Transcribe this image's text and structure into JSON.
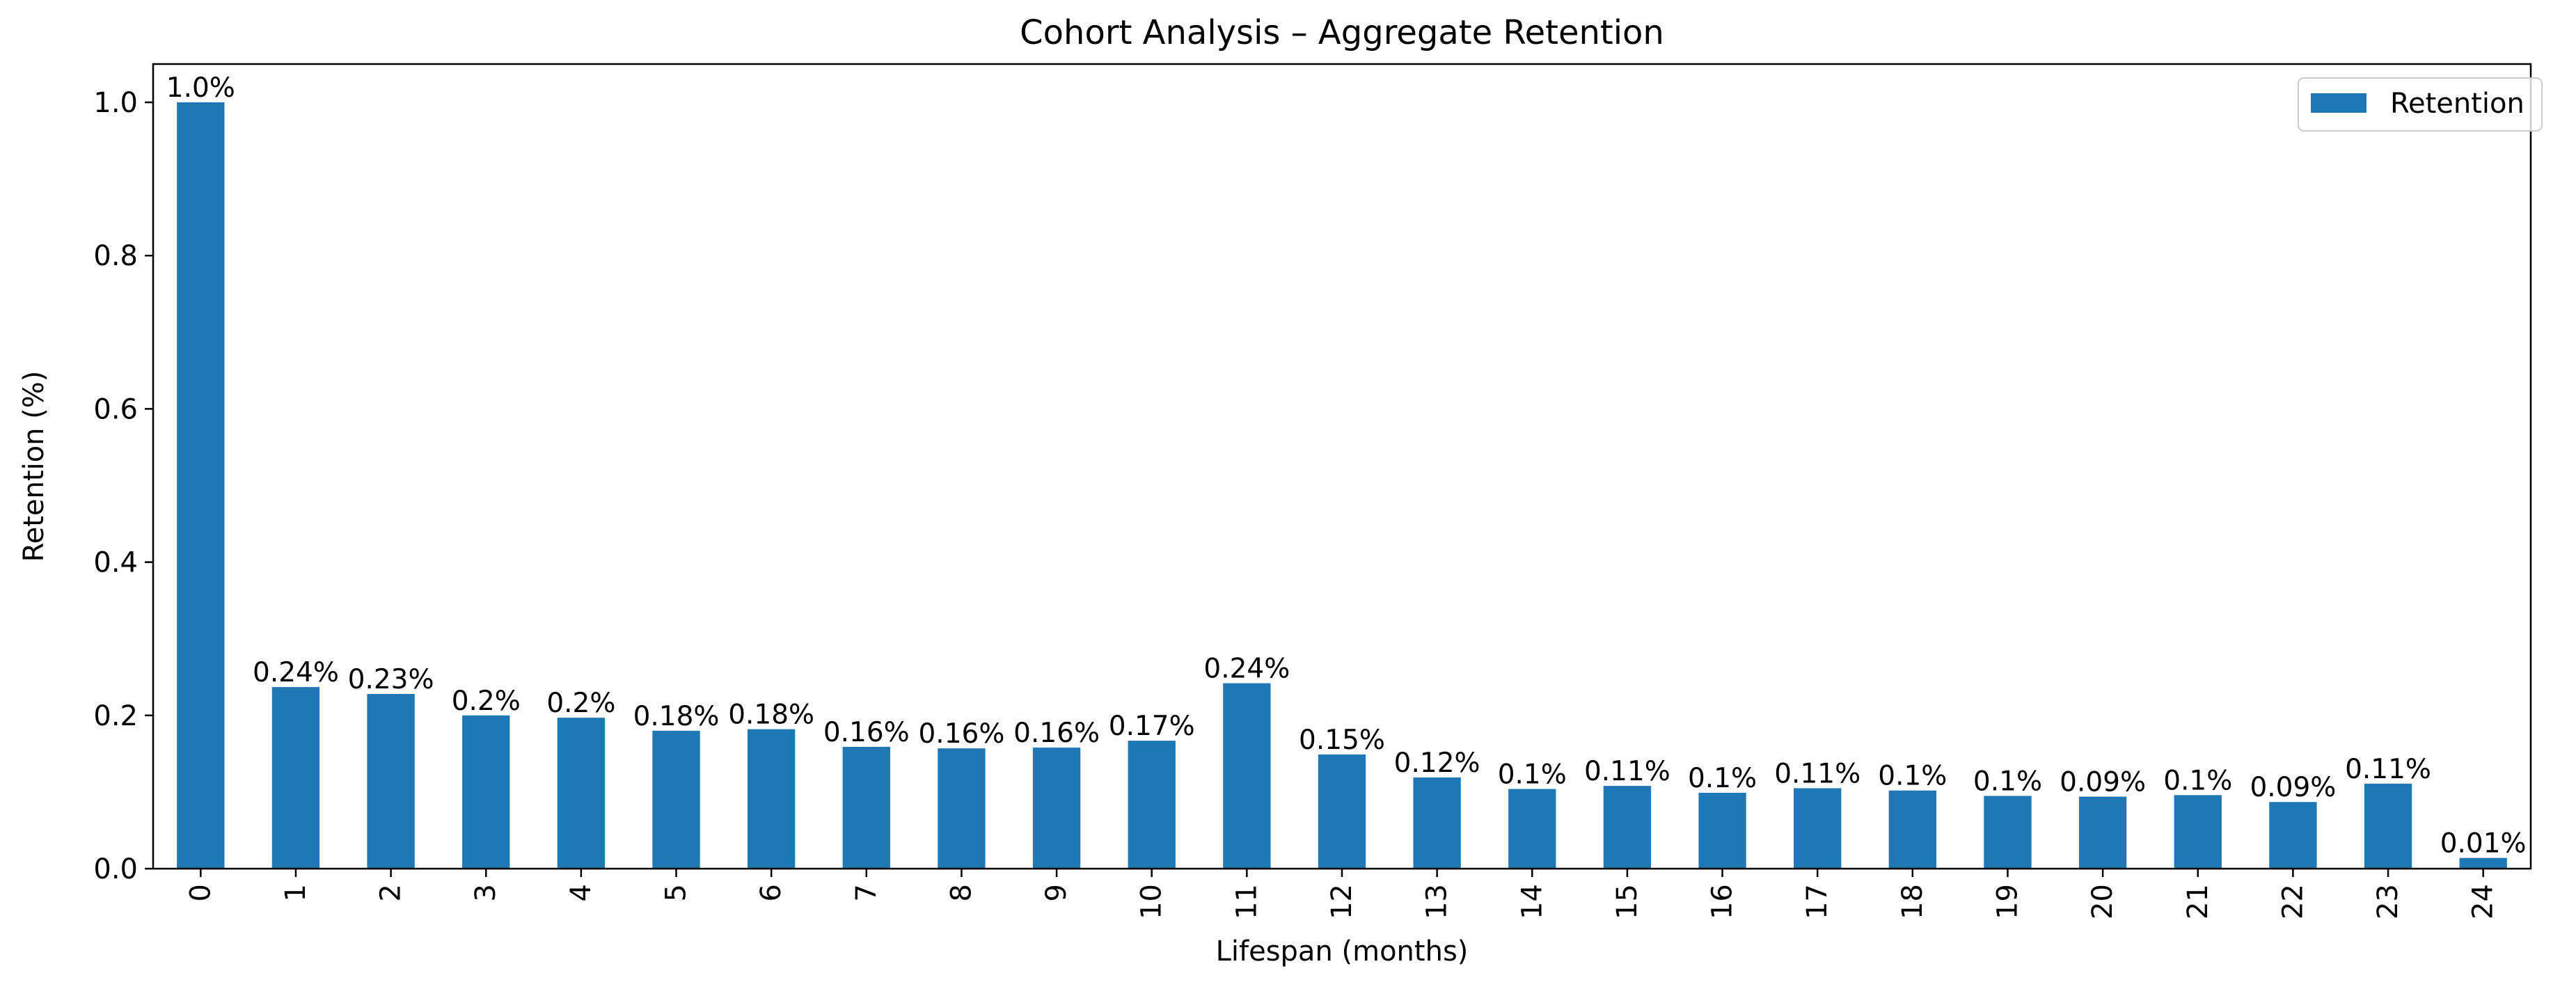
{
  "chart_data": {
    "type": "bar",
    "title": "Cohort Analysis – Aggregate Retention",
    "xlabel": "Lifespan (months)",
    "ylabel": "Retention (%)",
    "ylim": [
      0,
      1.05
    ],
    "yticks": [
      "0.0",
      "0.2",
      "0.4",
      "0.6",
      "0.8",
      "1.0"
    ],
    "grid": false,
    "legend_position": "top-right",
    "categories": [
      "0",
      "1",
      "2",
      "3",
      "4",
      "5",
      "6",
      "7",
      "8",
      "9",
      "10",
      "11",
      "12",
      "13",
      "14",
      "15",
      "16",
      "17",
      "18",
      "19",
      "20",
      "21",
      "22",
      "23",
      "24"
    ],
    "series": [
      {
        "name": "Retention",
        "color": "#1f77b4",
        "values": [
          1.0,
          0.237,
          0.228,
          0.2,
          0.197,
          0.18,
          0.182,
          0.159,
          0.157,
          0.158,
          0.167,
          0.242,
          0.149,
          0.119,
          0.104,
          0.108,
          0.099,
          0.105,
          0.102,
          0.095,
          0.094,
          0.096,
          0.087,
          0.111,
          0.014
        ],
        "labels": [
          "1.0%",
          "0.24%",
          "0.23%",
          "0.2%",
          "0.2%",
          "0.18%",
          "0.18%",
          "0.16%",
          "0.16%",
          "0.16%",
          "0.17%",
          "0.24%",
          "0.15%",
          "0.12%",
          "0.1%",
          "0.11%",
          "0.1%",
          "0.11%",
          "0.1%",
          "0.1%",
          "0.09%",
          "0.1%",
          "0.09%",
          "0.11%",
          "0.01%"
        ]
      }
    ]
  }
}
